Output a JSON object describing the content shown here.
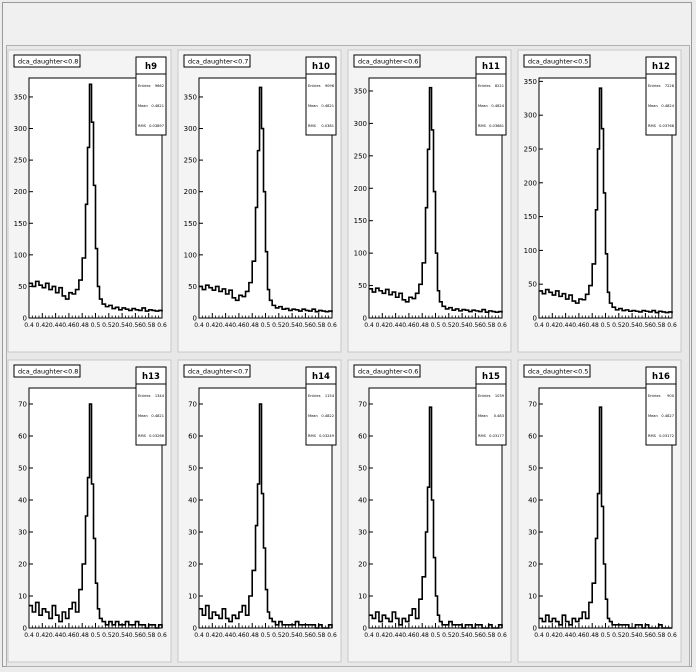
{
  "colors": {
    "canvas_bg": "#f0f0f0",
    "pad_bg": "#f4f4f4",
    "frame_bg": "#ffffff",
    "line": "#000000"
  },
  "chart_data": [
    {
      "type": "line",
      "name": "h9",
      "title": "dca_daughter<0.8",
      "stats": {
        "entries_label": "Entries",
        "entries": "9662",
        "mean_label": "Mean",
        "mean": "0.4821",
        "rms_label": "RMS",
        "rms": "0.03897"
      },
      "xlim": [
        0.4,
        0.6
      ],
      "ylim": [
        0,
        380
      ],
      "yticks": [
        0,
        50,
        100,
        150,
        200,
        250,
        300,
        350
      ],
      "xtick_labels": [
        "0.4",
        "0.42",
        "0.44",
        "0.46",
        "0.48",
        "0.5",
        "0.52",
        "0.54",
        "0.56",
        "0.58",
        "0.6"
      ],
      "x": [
        0.4,
        0.405,
        0.41,
        0.415,
        0.42,
        0.425,
        0.43,
        0.435,
        0.44,
        0.445,
        0.45,
        0.455,
        0.46,
        0.465,
        0.47,
        0.475,
        0.48,
        0.485,
        0.488,
        0.491,
        0.494,
        0.497,
        0.5,
        0.503,
        0.506,
        0.51,
        0.515,
        0.52,
        0.525,
        0.53,
        0.535,
        0.54,
        0.545,
        0.55,
        0.555,
        0.56,
        0.565,
        0.57,
        0.575,
        0.58,
        0.585,
        0.59,
        0.595,
        0.6
      ],
      "y": [
        55,
        50,
        58,
        52,
        48,
        55,
        45,
        50,
        40,
        48,
        35,
        30,
        40,
        38,
        45,
        60,
        95,
        180,
        270,
        370,
        310,
        210,
        110,
        50,
        30,
        22,
        18,
        20,
        15,
        17,
        13,
        16,
        14,
        12,
        15,
        13,
        12,
        16,
        11,
        13,
        12,
        11,
        12,
        10
      ]
    },
    {
      "type": "line",
      "name": "h10",
      "title": "dca_daughter<0.7",
      "stats": {
        "entries_label": "Entries",
        "entries": "9096",
        "mean_label": "Mean",
        "mean": "0.4821",
        "rms_label": "RMS",
        "rms": "0.0381"
      },
      "xlim": [
        0.4,
        0.6
      ],
      "ylim": [
        0,
        380
      ],
      "yticks": [
        0,
        50,
        100,
        150,
        200,
        250,
        300,
        350
      ],
      "xtick_labels": [
        "0.4",
        "0.42",
        "0.44",
        "0.46",
        "0.48",
        "0.5",
        "0.52",
        "0.54",
        "0.56",
        "0.58",
        "0.6"
      ],
      "x": [
        0.4,
        0.405,
        0.41,
        0.415,
        0.42,
        0.425,
        0.43,
        0.435,
        0.44,
        0.445,
        0.45,
        0.455,
        0.46,
        0.465,
        0.47,
        0.475,
        0.48,
        0.485,
        0.488,
        0.491,
        0.494,
        0.497,
        0.5,
        0.503,
        0.506,
        0.51,
        0.515,
        0.52,
        0.525,
        0.53,
        0.535,
        0.54,
        0.545,
        0.55,
        0.555,
        0.56,
        0.565,
        0.57,
        0.575,
        0.58,
        0.585,
        0.59,
        0.595,
        0.6
      ],
      "y": [
        50,
        45,
        52,
        48,
        44,
        50,
        42,
        46,
        38,
        44,
        32,
        28,
        36,
        34,
        42,
        56,
        90,
        175,
        265,
        365,
        300,
        200,
        105,
        45,
        28,
        20,
        16,
        18,
        14,
        15,
        12,
        14,
        13,
        11,
        14,
        12,
        11,
        14,
        10,
        12,
        11,
        10,
        11,
        9
      ]
    },
    {
      "type": "line",
      "name": "h11",
      "title": "dca_daughter<0.6",
      "stats": {
        "entries_label": "Entries",
        "entries": "8221",
        "mean_label": "Mean",
        "mean": "0.4824",
        "rms_label": "RMS",
        "rms": "0.03681"
      },
      "xlim": [
        0.4,
        0.6
      ],
      "ylim": [
        0,
        370
      ],
      "yticks": [
        0,
        50,
        100,
        150,
        200,
        250,
        300,
        350
      ],
      "xtick_labels": [
        "0.4",
        "0.42",
        "0.44",
        "0.46",
        "0.48",
        "0.5",
        "0.52",
        "0.54",
        "0.56",
        "0.58",
        "0.6"
      ],
      "x": [
        0.4,
        0.405,
        0.41,
        0.415,
        0.42,
        0.425,
        0.43,
        0.435,
        0.44,
        0.445,
        0.45,
        0.455,
        0.46,
        0.465,
        0.47,
        0.475,
        0.48,
        0.485,
        0.488,
        0.491,
        0.494,
        0.497,
        0.5,
        0.503,
        0.506,
        0.51,
        0.515,
        0.52,
        0.525,
        0.53,
        0.535,
        0.54,
        0.545,
        0.55,
        0.555,
        0.56,
        0.565,
        0.57,
        0.575,
        0.58,
        0.585,
        0.59,
        0.595,
        0.6
      ],
      "y": [
        45,
        40,
        46,
        42,
        38,
        44,
        36,
        40,
        32,
        38,
        28,
        25,
        32,
        30,
        38,
        52,
        85,
        170,
        260,
        355,
        290,
        195,
        100,
        42,
        25,
        18,
        14,
        16,
        12,
        14,
        11,
        13,
        12,
        10,
        12,
        11,
        10,
        13,
        9,
        11,
        10,
        9,
        10,
        8
      ]
    },
    {
      "type": "line",
      "name": "h12",
      "title": "dca_daughter<0.5",
      "stats": {
        "entries_label": "Entries",
        "entries": "7228",
        "mean_label": "Mean",
        "mean": "0.4824",
        "rms_label": "RMS",
        "rms": "0.03768"
      },
      "xlim": [
        0.4,
        0.6
      ],
      "ylim": [
        0,
        355
      ],
      "yticks": [
        0,
        50,
        100,
        150,
        200,
        250,
        300,
        350
      ],
      "xtick_labels": [
        "0.4",
        "0.42",
        "0.44",
        "0.46",
        "0.48",
        "0.5",
        "0.52",
        "0.54",
        "0.56",
        "0.58",
        "0.6"
      ],
      "x": [
        0.4,
        0.405,
        0.41,
        0.415,
        0.42,
        0.425,
        0.43,
        0.435,
        0.44,
        0.445,
        0.45,
        0.455,
        0.46,
        0.465,
        0.47,
        0.475,
        0.48,
        0.485,
        0.488,
        0.491,
        0.494,
        0.497,
        0.5,
        0.503,
        0.506,
        0.51,
        0.515,
        0.52,
        0.525,
        0.53,
        0.535,
        0.54,
        0.545,
        0.55,
        0.555,
        0.56,
        0.565,
        0.57,
        0.575,
        0.58,
        0.585,
        0.59,
        0.595,
        0.6
      ],
      "y": [
        40,
        36,
        42,
        38,
        34,
        40,
        32,
        36,
        28,
        34,
        25,
        22,
        28,
        27,
        35,
        48,
        80,
        160,
        250,
        340,
        280,
        185,
        95,
        38,
        22,
        16,
        12,
        14,
        11,
        12,
        10,
        11,
        10,
        9,
        11,
        10,
        9,
        11,
        8,
        10,
        9,
        8,
        9,
        7
      ]
    },
    {
      "type": "line",
      "name": "h13",
      "title": "dca_daughter<0.8",
      "stats": {
        "entries_label": "Entries",
        "entries": "1344",
        "mean_label": "Mean",
        "mean": "0.4821",
        "rms_label": "RMS",
        "rms": "0.03266"
      },
      "xlim": [
        0.4,
        0.6
      ],
      "ylim": [
        0,
        75
      ],
      "yticks": [
        0,
        10,
        20,
        30,
        40,
        50,
        60,
        70
      ],
      "xtick_labels": [
        "0.4",
        "0.42",
        "0.44",
        "0.46",
        "0.48",
        "0.5",
        "0.52",
        "0.54",
        "0.56",
        "0.58",
        "0.6"
      ],
      "x": [
        0.4,
        0.405,
        0.41,
        0.415,
        0.42,
        0.425,
        0.43,
        0.435,
        0.44,
        0.445,
        0.45,
        0.455,
        0.46,
        0.465,
        0.47,
        0.475,
        0.48,
        0.485,
        0.488,
        0.491,
        0.494,
        0.497,
        0.5,
        0.503,
        0.506,
        0.51,
        0.515,
        0.52,
        0.525,
        0.53,
        0.535,
        0.54,
        0.545,
        0.55,
        0.555,
        0.56,
        0.565,
        0.57,
        0.575,
        0.58,
        0.585,
        0.59,
        0.595,
        0.6
      ],
      "y": [
        7,
        5,
        8,
        4,
        6,
        5,
        3,
        7,
        4,
        2,
        5,
        3,
        6,
        8,
        5,
        12,
        20,
        35,
        47,
        70,
        45,
        28,
        14,
        6,
        3,
        2,
        1,
        2,
        1,
        2,
        1,
        1,
        2,
        1,
        1,
        2,
        1,
        1,
        0,
        1,
        1,
        0,
        1,
        0
      ]
    },
    {
      "type": "line",
      "name": "h14",
      "title": "dca_daughter<0.7",
      "stats": {
        "entries_label": "Entries",
        "entries": "1154",
        "mean_label": "Mean",
        "mean": "0.4822",
        "rms_label": "RMS",
        "rms": "0.03249"
      },
      "xlim": [
        0.4,
        0.6
      ],
      "ylim": [
        0,
        75
      ],
      "yticks": [
        0,
        10,
        20,
        30,
        40,
        50,
        60,
        70
      ],
      "xtick_labels": [
        "0.4",
        "0.42",
        "0.44",
        "0.46",
        "0.48",
        "0.5",
        "0.52",
        "0.54",
        "0.56",
        "0.58",
        "0.6"
      ],
      "x": [
        0.4,
        0.405,
        0.41,
        0.415,
        0.42,
        0.425,
        0.43,
        0.435,
        0.44,
        0.445,
        0.45,
        0.455,
        0.46,
        0.465,
        0.47,
        0.475,
        0.48,
        0.485,
        0.488,
        0.491,
        0.494,
        0.497,
        0.5,
        0.503,
        0.506,
        0.51,
        0.515,
        0.52,
        0.525,
        0.53,
        0.535,
        0.54,
        0.545,
        0.55,
        0.555,
        0.56,
        0.565,
        0.57,
        0.575,
        0.58,
        0.585,
        0.59,
        0.595,
        0.6
      ],
      "y": [
        6,
        4,
        7,
        3,
        5,
        4,
        3,
        6,
        3,
        2,
        4,
        3,
        5,
        7,
        4,
        10,
        18,
        32,
        45,
        70,
        42,
        25,
        12,
        5,
        3,
        2,
        1,
        2,
        1,
        1,
        1,
        1,
        2,
        1,
        1,
        1,
        1,
        1,
        0,
        1,
        0,
        0,
        1,
        0
      ]
    },
    {
      "type": "line",
      "name": "h15",
      "title": "dca_daughter<0.6",
      "stats": {
        "entries_label": "Entries",
        "entries": "1039",
        "mean_label": "Mean",
        "mean": "0.483",
        "rms_label": "RMS",
        "rms": "0.03177"
      },
      "xlim": [
        0.4,
        0.6
      ],
      "ylim": [
        0,
        75
      ],
      "yticks": [
        0,
        10,
        20,
        30,
        40,
        50,
        60,
        70
      ],
      "xtick_labels": [
        "0.4",
        "0.42",
        "0.44",
        "0.46",
        "0.48",
        "0.5",
        "0.52",
        "0.54",
        "0.56",
        "0.58",
        "0.6"
      ],
      "x": [
        0.4,
        0.405,
        0.41,
        0.415,
        0.42,
        0.425,
        0.43,
        0.435,
        0.44,
        0.445,
        0.45,
        0.455,
        0.46,
        0.465,
        0.47,
        0.475,
        0.48,
        0.485,
        0.488,
        0.491,
        0.494,
        0.497,
        0.5,
        0.503,
        0.506,
        0.51,
        0.515,
        0.52,
        0.525,
        0.53,
        0.535,
        0.54,
        0.545,
        0.55,
        0.555,
        0.56,
        0.565,
        0.57,
        0.575,
        0.58,
        0.585,
        0.59,
        0.595,
        0.6
      ],
      "y": [
        4,
        3,
        5,
        2,
        4,
        3,
        2,
        5,
        3,
        1,
        3,
        2,
        4,
        6,
        3,
        9,
        16,
        30,
        44,
        69,
        40,
        22,
        10,
        4,
        2,
        1,
        1,
        2,
        1,
        1,
        1,
        0,
        1,
        1,
        0,
        1,
        1,
        0,
        0,
        1,
        0,
        0,
        1,
        0
      ]
    },
    {
      "type": "line",
      "name": "h16",
      "title": "dca_daughter<0.5",
      "stats": {
        "entries_label": "Entries",
        "entries": "900",
        "mean_label": "Mean",
        "mean": "0.4827",
        "rms_label": "RMS",
        "rms": "0.03172"
      },
      "xlim": [
        0.4,
        0.6
      ],
      "ylim": [
        0,
        75
      ],
      "yticks": [
        0,
        10,
        20,
        30,
        40,
        50,
        60,
        70
      ],
      "xtick_labels": [
        "0.4",
        "0.42",
        "0.44",
        "0.46",
        "0.48",
        "0.5",
        "0.52",
        "0.54",
        "0.56",
        "0.58",
        "0.6"
      ],
      "x": [
        0.4,
        0.405,
        0.41,
        0.415,
        0.42,
        0.425,
        0.43,
        0.435,
        0.44,
        0.445,
        0.45,
        0.455,
        0.46,
        0.465,
        0.47,
        0.475,
        0.48,
        0.485,
        0.488,
        0.491,
        0.494,
        0.497,
        0.5,
        0.503,
        0.506,
        0.51,
        0.515,
        0.52,
        0.525,
        0.53,
        0.535,
        0.54,
        0.545,
        0.55,
        0.555,
        0.56,
        0.565,
        0.57,
        0.575,
        0.58,
        0.585,
        0.59,
        0.595,
        0.6
      ],
      "y": [
        3,
        2,
        4,
        2,
        3,
        2,
        1,
        4,
        2,
        1,
        3,
        2,
        3,
        5,
        3,
        8,
        14,
        28,
        42,
        69,
        38,
        20,
        9,
        3,
        2,
        1,
        1,
        1,
        1,
        1,
        0,
        0,
        1,
        1,
        0,
        1,
        0,
        0,
        0,
        1,
        0,
        0,
        0,
        0
      ]
    }
  ]
}
